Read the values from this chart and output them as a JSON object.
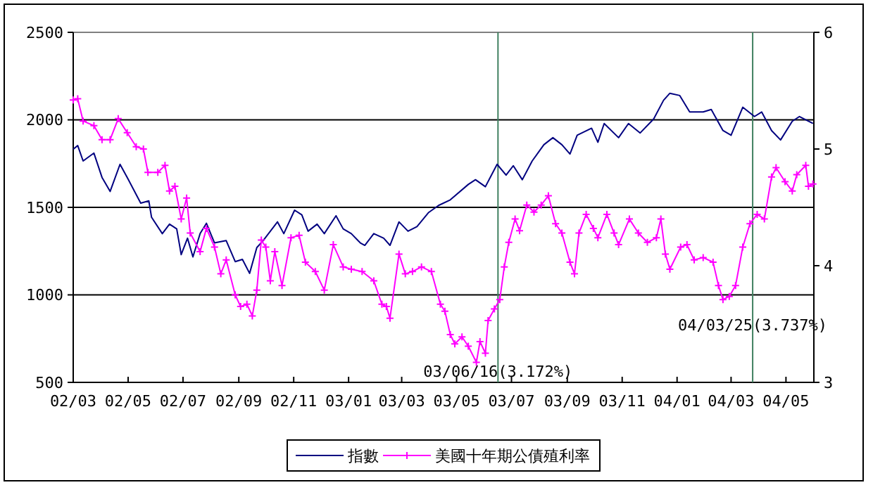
{
  "chart_data": {
    "type": "line",
    "xlim": [
      "2002-03-01",
      "2004-06-01"
    ],
    "xticks": [
      {
        "value": "2002-03",
        "label": "02/03"
      },
      {
        "value": "2002-05",
        "label": "02/05"
      },
      {
        "value": "2002-07",
        "label": "02/07"
      },
      {
        "value": "2002-09",
        "label": "02/09"
      },
      {
        "value": "2002-11",
        "label": "02/11"
      },
      {
        "value": "2003-01",
        "label": "03/01"
      },
      {
        "value": "2003-03",
        "label": "03/03"
      },
      {
        "value": "2003-05",
        "label": "03/05"
      },
      {
        "value": "2003-07",
        "label": "03/07"
      },
      {
        "value": "2003-09",
        "label": "03/09"
      },
      {
        "value": "2003-11",
        "label": "03/11"
      },
      {
        "value": "2004-01",
        "label": "04/01"
      },
      {
        "value": "2004-03",
        "label": "04/03"
      },
      {
        "value": "2004-05",
        "label": "04/05"
      }
    ],
    "ylim": [
      500,
      2500
    ],
    "yticks": [
      500,
      1000,
      1500,
      2000,
      2500
    ],
    "y2lim": [
      3,
      6
    ],
    "y2ticks": [
      3,
      4,
      5,
      6
    ],
    "grid": "y",
    "legend": "bottom",
    "ref_lines": [
      {
        "axis": "x",
        "value": "2003-06-16",
        "label": "03/06/16(3.172%)",
        "color": "#408060"
      },
      {
        "axis": "x",
        "value": "2004-03-25",
        "label": "04/03/25(3.737%)",
        "color": "#408060"
      }
    ],
    "series": [
      {
        "name": "指數",
        "color": "#000080",
        "marker": "none",
        "x": [
          "2002-03-01",
          "2002-03-06",
          "2002-03-12",
          "2002-03-24",
          "2002-04-02",
          "2002-04-11",
          "2002-04-22",
          "2002-04-30",
          "2002-05-15",
          "2002-05-24",
          "2002-05-27",
          "2002-06-08",
          "2002-06-16",
          "2002-06-24",
          "2002-06-29",
          "2002-07-06",
          "2002-07-12",
          "2002-07-20",
          "2002-07-27",
          "2002-08-05",
          "2002-08-18",
          "2002-08-28",
          "2002-09-05",
          "2002-09-13",
          "2002-09-21",
          "2002-09-28",
          "2002-10-14",
          "2002-10-21",
          "2002-11-02",
          "2002-11-10",
          "2002-11-17",
          "2002-11-27",
          "2002-12-05",
          "2002-12-18",
          "2002-12-26",
          "2003-01-04",
          "2003-01-14",
          "2003-01-19",
          "2003-01-29",
          "2003-02-09",
          "2003-02-16",
          "2003-02-26",
          "2003-03-08",
          "2003-03-18",
          "2003-03-31",
          "2003-04-11",
          "2003-04-24",
          "2003-05-14",
          "2003-05-22",
          "2003-06-02",
          "2003-06-15",
          "2003-06-25",
          "2003-07-03",
          "2003-07-13",
          "2003-07-24",
          "2003-08-06",
          "2003-08-16",
          "2003-08-26",
          "2003-09-04",
          "2003-09-12",
          "2003-09-28",
          "2003-10-05",
          "2003-10-12",
          "2003-10-28",
          "2003-11-08",
          "2003-11-21",
          "2003-12-06",
          "2003-12-17",
          "2003-12-24",
          "2004-01-04",
          "2004-01-15",
          "2004-01-30",
          "2004-02-08",
          "2004-02-21",
          "2004-03-01",
          "2004-03-14",
          "2004-03-27",
          "2004-04-04",
          "2004-04-15",
          "2004-04-25",
          "2004-05-08",
          "2004-05-16",
          "2004-05-31"
        ],
        "values": [
          1832,
          1853,
          1765,
          1810,
          1671,
          1591,
          1746,
          1671,
          1524,
          1537,
          1444,
          1350,
          1404,
          1377,
          1230,
          1324,
          1217,
          1350,
          1409,
          1297,
          1310,
          1190,
          1203,
          1123,
          1270,
          1310,
          1417,
          1350,
          1484,
          1457,
          1364,
          1404,
          1350,
          1452,
          1377,
          1350,
          1297,
          1283,
          1350,
          1324,
          1283,
          1417,
          1364,
          1390,
          1471,
          1511,
          1543,
          1631,
          1658,
          1618,
          1746,
          1684,
          1738,
          1658,
          1765,
          1858,
          1898,
          1858,
          1805,
          1912,
          1952,
          1872,
          1979,
          1898,
          1979,
          1925,
          2005,
          2112,
          2152,
          2139,
          2045,
          2045,
          2059,
          1939,
          1912,
          2072,
          2019,
          2045,
          1939,
          1885,
          1992,
          2019,
          1979
        ]
      },
      {
        "name": "美國十年期公債殖利率",
        "color": "#ff00ff",
        "marker": "cross",
        "axis": "y2",
        "x": [
          "2002-03-01",
          "2002-03-06",
          "2002-03-12",
          "2002-03-24",
          "2002-04-02",
          "2002-04-11",
          "2002-04-20",
          "2002-04-30",
          "2002-05-10",
          "2002-05-18",
          "2002-05-23",
          "2002-06-03",
          "2002-06-11",
          "2002-06-16",
          "2002-06-22",
          "2002-06-29",
          "2002-07-05",
          "2002-07-09",
          "2002-07-20",
          "2002-07-27",
          "2002-08-05",
          "2002-08-12",
          "2002-08-18",
          "2002-08-28",
          "2002-09-03",
          "2002-09-10",
          "2002-09-16",
          "2002-09-21",
          "2002-09-26",
          "2002-10-01",
          "2002-10-06",
          "2002-10-11",
          "2002-10-19",
          "2002-10-29",
          "2002-11-07",
          "2002-11-14",
          "2002-11-25",
          "2002-12-05",
          "2002-12-15",
          "2002-12-26",
          "2003-01-04",
          "2003-01-16",
          "2003-01-29",
          "2003-02-07",
          "2003-02-12",
          "2003-02-16",
          "2003-02-26",
          "2003-03-05",
          "2003-03-13",
          "2003-03-23",
          "2003-04-03",
          "2003-04-13",
          "2003-04-18",
          "2003-04-24",
          "2003-04-29",
          "2003-05-07",
          "2003-05-14",
          "2003-05-23",
          "2003-05-27",
          "2003-06-02",
          "2003-06-05",
          "2003-06-12",
          "2003-06-18",
          "2003-06-23",
          "2003-06-28",
          "2003-07-05",
          "2003-07-10",
          "2003-07-18",
          "2003-07-26",
          "2003-08-03",
          "2003-08-11",
          "2003-08-19",
          "2003-08-26",
          "2003-09-04",
          "2003-09-09",
          "2003-09-14",
          "2003-09-22",
          "2003-09-30",
          "2003-10-05",
          "2003-10-15",
          "2003-10-23",
          "2003-10-28",
          "2003-11-09",
          "2003-11-19",
          "2003-11-29",
          "2003-12-09",
          "2003-12-14",
          "2003-12-19",
          "2003-12-24",
          "2004-01-05",
          "2004-01-12",
          "2004-01-20",
          "2004-01-30",
          "2004-02-10",
          "2004-02-16",
          "2004-02-21",
          "2004-02-28",
          "2004-03-06",
          "2004-03-14",
          "2004-03-22",
          "2004-03-30",
          "2004-04-07",
          "2004-04-15",
          "2004-04-20",
          "2004-04-30",
          "2004-05-08",
          "2004-05-13",
          "2004-05-23",
          "2004-05-26",
          "2004-05-31"
        ],
        "values": [
          5.42,
          5.43,
          5.24,
          5.2,
          5.08,
          5.08,
          5.26,
          5.14,
          5.02,
          5.0,
          4.8,
          4.8,
          4.86,
          4.64,
          4.68,
          4.4,
          4.58,
          4.28,
          4.12,
          4.32,
          4.16,
          3.93,
          4.05,
          3.75,
          3.65,
          3.67,
          3.57,
          3.79,
          4.22,
          4.16,
          3.87,
          4.12,
          3.83,
          4.24,
          4.26,
          4.03,
          3.95,
          3.79,
          4.18,
          3.99,
          3.97,
          3.95,
          3.87,
          3.67,
          3.65,
          3.55,
          4.1,
          3.93,
          3.95,
          3.99,
          3.95,
          3.67,
          3.61,
          3.41,
          3.33,
          3.39,
          3.31,
          3.172,
          3.35,
          3.25,
          3.53,
          3.63,
          3.71,
          3.99,
          4.2,
          4.4,
          4.3,
          4.52,
          4.46,
          4.52,
          4.6,
          4.36,
          4.28,
          4.03,
          3.93,
          4.28,
          4.44,
          4.32,
          4.24,
          4.44,
          4.28,
          4.18,
          4.4,
          4.28,
          4.2,
          4.24,
          4.4,
          4.1,
          3.97,
          4.16,
          4.18,
          4.05,
          4.07,
          4.03,
          3.83,
          3.71,
          3.737,
          3.83,
          4.16,
          4.36,
          4.44,
          4.4,
          4.76,
          4.84,
          4.72,
          4.64,
          4.78,
          4.86,
          4.68,
          4.7
        ]
      }
    ]
  }
}
